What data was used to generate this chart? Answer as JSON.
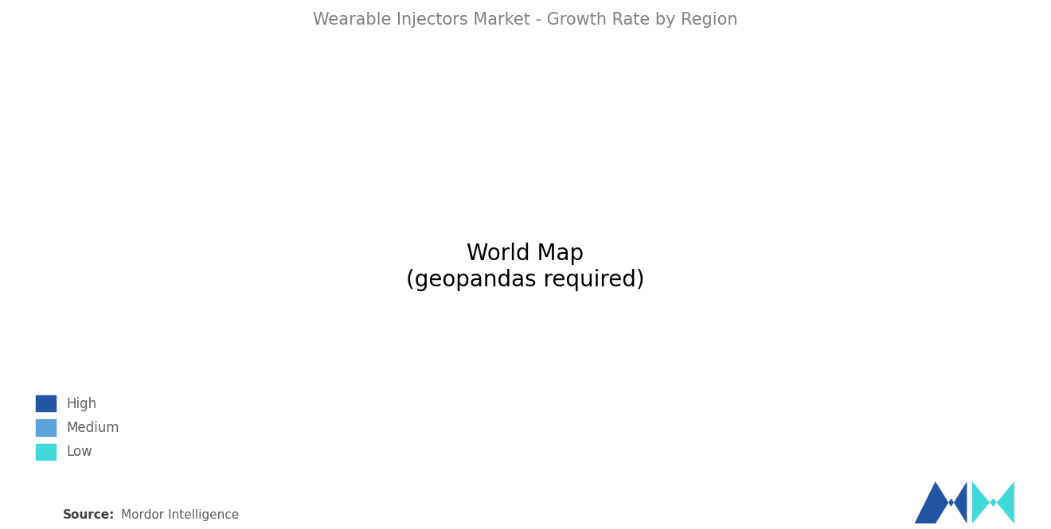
{
  "title": "Wearable Injectors Market - Growth Rate by Region",
  "title_color": "#808080",
  "title_fontsize": 15,
  "background_color": "#ffffff",
  "legend": {
    "High": "#2155a3",
    "Medium": "#5ba3d9",
    "Low": "#40d8d8"
  },
  "region_colors": {
    "North America": "#5ba3d9",
    "South America": "#40d8d8",
    "Europe": "#5ba3d9",
    "Africa": "#40d8d8",
    "Middle East": "#40d8d8",
    "Russia": "#aaaaaa",
    "Central Asia": "#aaaaaa",
    "China": "#2155a3",
    "South Asia": "#2155a3",
    "Southeast Asia": "#2155a3",
    "East Asia": "#2155a3",
    "Australia": "#2155a3",
    "Oceania": "#2155a3",
    "Japan": "#2155a3",
    "Korea": "#2155a3"
  },
  "source_text": "Source:",
  "source_detail": "  Mordor Intelligence",
  "source_fontsize": 11,
  "no_data_color": "#aaaaaa",
  "ocean_color": "#ffffff",
  "border_color": "#ffffff",
  "border_width": 0.5,
  "logo_colors": [
    "#2155a3",
    "#40d8d8"
  ]
}
